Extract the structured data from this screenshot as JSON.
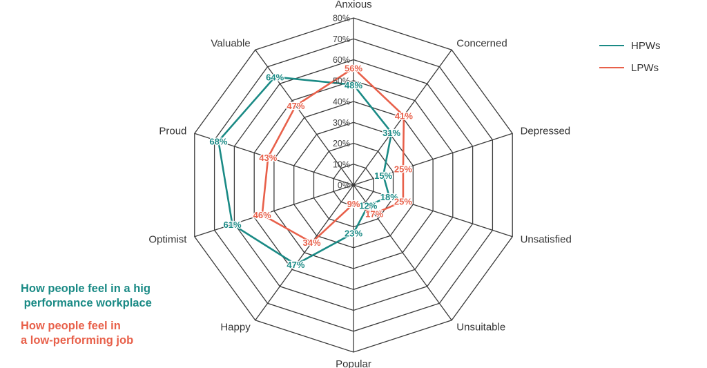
{
  "chart_data": {
    "type": "radar",
    "title": "",
    "axes": [
      "Anxious",
      "Concerned",
      "Depressed",
      "Unsatisfied",
      "Unsuitable",
      "Popular",
      "Happy",
      "Optimist",
      "Proud",
      "Valuable"
    ],
    "scale": {
      "min": 0,
      "max": 80,
      "step": 10,
      "tick_labels": [
        "0%",
        "10%",
        "20%",
        "30%",
        "40%",
        "50%",
        "60%",
        "70%",
        "80%"
      ]
    },
    "grid": true,
    "legend": "top-right",
    "series": [
      {
        "name": "HPWs",
        "color": "#1a8a85",
        "values": [
          48,
          31,
          15,
          18,
          12,
          23,
          47,
          61,
          68,
          64
        ],
        "labels": [
          "48%",
          "31%",
          "15%",
          "18%",
          "12%",
          "23%",
          "47%",
          "61%",
          "68%",
          "64%"
        ]
      },
      {
        "name": "LPWs",
        "color": "#e8604a",
        "values": [
          56,
          41,
          25,
          25,
          17,
          9,
          34,
          46,
          43,
          47
        ],
        "labels": [
          "56%",
          "41%",
          "25%",
          "25%",
          "17%",
          "9%",
          "34%",
          "46%",
          "43%",
          "47%"
        ]
      }
    ],
    "annotations": [
      {
        "text": "How people feel in a hig\n performance workplace",
        "color": "#1a8a85"
      },
      {
        "text": "How people feel in\na low-performing job",
        "color": "#e8604a"
      }
    ]
  }
}
